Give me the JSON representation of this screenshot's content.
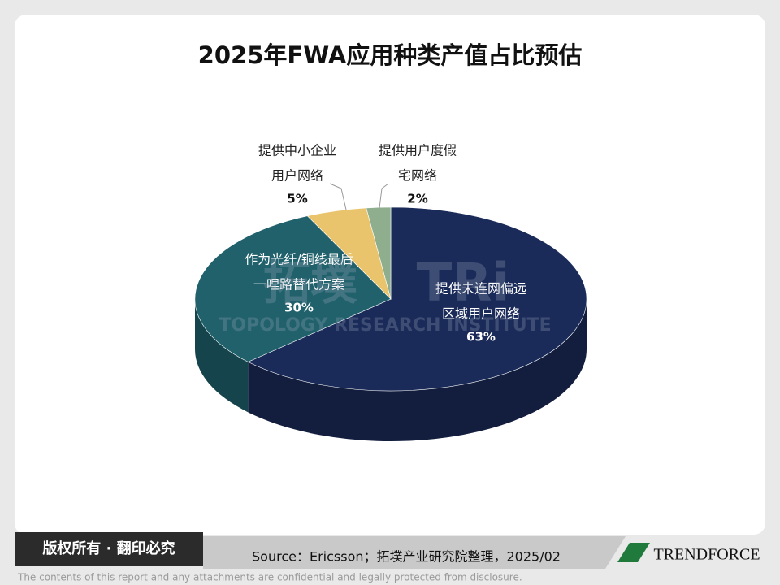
{
  "chart_data": {
    "type": "pie",
    "title": "2025年FWA应用种类产值占比预估",
    "categories": [
      [
        "提供未连网偏远",
        "区域用户网络"
      ],
      [
        "作为光纤/铜线最后",
        "一哩路替代方案"
      ],
      [
        "提供中小企业",
        "用户网络"
      ],
      [
        "提供用户度假",
        "宅网络"
      ]
    ],
    "values": [
      63,
      30,
      5,
      2
    ],
    "value_labels": [
      "63%",
      "30%",
      "5%",
      "2%"
    ],
    "colors": [
      "#1b2b59",
      "#20616c",
      "#e9c46d",
      "#8fae8e"
    ]
  },
  "watermark": {
    "logo": "拓墣",
    "mark": "TRi",
    "name": "TOPOLOGY RESEARCH INSTITUTE"
  },
  "footer": {
    "copyright": "版权所有 · 翻印必究",
    "source": "Source：Ericsson；拓墣产业研究院整理，2025/02",
    "brand": "TRENDFORCE",
    "disclaimer": "The contents of this report and any attachments are confidential and legally protected from disclosure."
  }
}
